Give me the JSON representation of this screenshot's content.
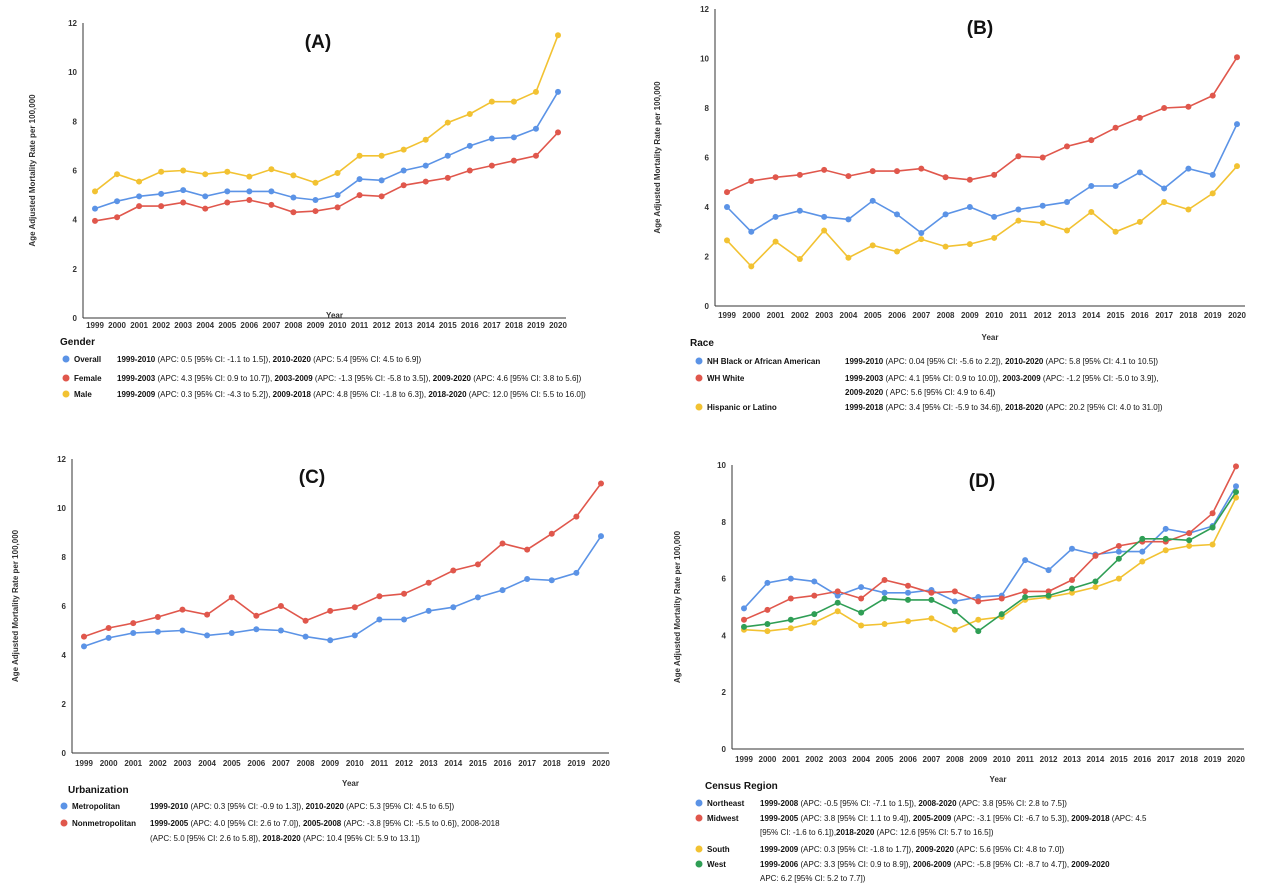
{
  "colors": {
    "blue": "#5b93e6",
    "red": "#e0574c",
    "yellow": "#f2c232",
    "green": "#2f9e55",
    "axis": "#333333"
  },
  "chart_data": [
    {
      "type": "line",
      "title": "(A)",
      "xlabel": "Year",
      "ylabel": "Age Adjusted Mortality Rate per 100,000",
      "ylim": [
        0,
        12
      ],
      "yticks": [
        0,
        2,
        4,
        6,
        8,
        10,
        12
      ],
      "x": [
        "1999",
        "2000",
        "2001",
        "2002",
        "2003",
        "2004",
        "2005",
        "2006",
        "2007",
        "2008",
        "2009",
        "2010",
        "2011",
        "2012",
        "2013",
        "2014",
        "2015",
        "2016",
        "2017",
        "2018",
        "2019",
        "2020"
      ],
      "legend_title": "Gender",
      "series": [
        {
          "name": "Overall",
          "color": "#5b93e6",
          "values": [
            4.45,
            4.75,
            4.95,
            5.05,
            5.2,
            4.95,
            5.15,
            5.15,
            5.15,
            4.9,
            4.8,
            5.0,
            5.65,
            5.6,
            6.0,
            6.2,
            6.6,
            7.0,
            7.3,
            7.35,
            7.7,
            9.2
          ],
          "legend_lines": [
            [
              [
                "b",
                "1999-2010"
              ],
              [
                "n",
                " (APC: 0.5 [95% CI: -1.1 to 1.5]), "
              ],
              [
                "b",
                "2010-2020"
              ],
              [
                "n",
                " (APC: 5.4 [95% CI: 4.5 to 6.9])"
              ]
            ]
          ]
        },
        {
          "name": "Female",
          "color": "#e0574c",
          "values": [
            3.95,
            4.1,
            4.55,
            4.55,
            4.7,
            4.45,
            4.7,
            4.8,
            4.6,
            4.3,
            4.35,
            4.5,
            5.0,
            4.95,
            5.4,
            5.55,
            5.7,
            6.0,
            6.2,
            6.4,
            6.6,
            7.55
          ],
          "legend_lines": [
            [
              [
                "b",
                "1999-2003"
              ],
              [
                "n",
                " (APC: 4.3 [95% CI: 0.9 to 10.7]), "
              ],
              [
                "b",
                "2003-2009"
              ],
              [
                "n",
                " (APC: -1.3 [95% CI: -5.8 to 3.5]), "
              ],
              [
                "b",
                "2009-2020"
              ],
              [
                "n",
                " (APC: 4.6 [95% CI: 3.8 to 5.6])"
              ]
            ]
          ]
        },
        {
          "name": "Male",
          "color": "#f2c232",
          "values": [
            5.15,
            5.85,
            5.55,
            5.95,
            6.0,
            5.85,
            5.95,
            5.75,
            6.05,
            5.8,
            5.5,
            5.9,
            6.6,
            6.6,
            6.85,
            7.25,
            7.95,
            8.3,
            8.8,
            8.8,
            9.2,
            11.5
          ],
          "legend_lines": [
            [
              [
                "b",
                "1999-2009"
              ],
              [
                "n",
                " (APC: 0.3 [95% CI: -4.3 to 5.2]), "
              ],
              [
                "b",
                "2009-2018"
              ],
              [
                "n",
                " (APC: 4.8 [95% CI: -1.8 to 6.3]), "
              ],
              [
                "b",
                "2018-2020"
              ],
              [
                "n",
                " (APC: 12.0 [95% CI: 5.5 to 16.0])"
              ]
            ]
          ]
        }
      ]
    },
    {
      "type": "line",
      "title": "(B)",
      "xlabel": "Year",
      "ylabel": "Age Adjusted Mortality Rate per 100,000",
      "ylim": [
        0,
        12
      ],
      "yticks": [
        0,
        2,
        4,
        6,
        8,
        10,
        12
      ],
      "x": [
        "1999",
        "2000",
        "2001",
        "2002",
        "2003",
        "2004",
        "2005",
        "2006",
        "2007",
        "2008",
        "2009",
        "2010",
        "2011",
        "2012",
        "2013",
        "2014",
        "2015",
        "2016",
        "2017",
        "2018",
        "2019",
        "2020"
      ],
      "legend_title": "Race",
      "series": [
        {
          "name": "NH Black or African American",
          "color": "#5b93e6",
          "values": [
            4.0,
            3.0,
            3.6,
            3.85,
            3.6,
            3.5,
            4.25,
            3.7,
            2.95,
            3.7,
            4.0,
            3.6,
            3.9,
            4.05,
            4.2,
            4.85,
            4.85,
            5.4,
            4.75,
            5.55,
            5.3,
            7.35
          ],
          "legend_lines": [
            [
              [
                "b",
                "1999-2010"
              ],
              [
                "n",
                " (APC: 0.04 [95% CI: -5.6 to 2.2]), "
              ],
              [
                "b",
                "2010-2020"
              ],
              [
                "n",
                " (APC: 5.8 [95% CI: 4.1 to 10.5])"
              ]
            ]
          ]
        },
        {
          "name": "WH White",
          "color": "#e0574c",
          "values": [
            4.6,
            5.05,
            5.2,
            5.3,
            5.5,
            5.25,
            5.45,
            5.45,
            5.55,
            5.2,
            5.1,
            5.3,
            6.05,
            6.0,
            6.45,
            6.7,
            7.2,
            7.6,
            8.0,
            8.05,
            8.5,
            10.05
          ],
          "legend_lines": [
            [
              [
                "b",
                "1999-2003"
              ],
              [
                "n",
                " (APC: 4.1 [95% CI: 0.9 to 10.0]), "
              ],
              [
                "b",
                "2003-2009"
              ],
              [
                "n",
                " (APC: -1.2 [95% CI: -5.0 to 3.9]),"
              ]
            ],
            [
              [
                "b",
                "2009-2020"
              ],
              [
                "n",
                " ( APC: 5.6 [95% CI: 4.9 to 6.4])"
              ]
            ]
          ]
        },
        {
          "name": "Hispanic or Latino",
          "color": "#f2c232",
          "values": [
            2.65,
            1.6,
            2.6,
            1.9,
            3.05,
            1.95,
            2.45,
            2.2,
            2.7,
            2.4,
            2.5,
            2.75,
            3.45,
            3.35,
            3.05,
            3.8,
            3.0,
            3.4,
            4.2,
            3.9,
            4.55,
            5.65
          ],
          "legend_lines": [
            [
              [
                "b",
                "1999-2018"
              ],
              [
                "n",
                " (APC: 3.4 [95% CI: -5.9 to 34.6]), "
              ],
              [
                "b",
                "2018-2020"
              ],
              [
                "n",
                " (APC: 20.2 [95% CI: 4.0 to 31.0])"
              ]
            ]
          ]
        }
      ]
    },
    {
      "type": "line",
      "title": "(C)",
      "xlabel": "Year",
      "ylabel": "Age Adjusted Mortality Rate per 100,000",
      "ylim": [
        0,
        12
      ],
      "yticks": [
        0,
        2,
        4,
        6,
        8,
        10,
        12
      ],
      "x": [
        "1999",
        "2000",
        "2001",
        "2002",
        "2003",
        "2004",
        "2005",
        "2006",
        "2007",
        "2008",
        "2009",
        "2010",
        "2011",
        "2012",
        "2013",
        "2014",
        "2015",
        "2016",
        "2017",
        "2018",
        "2019",
        "2020"
      ],
      "legend_title": "Urbanization",
      "series": [
        {
          "name": "Metropolitan",
          "color": "#5b93e6",
          "values": [
            4.35,
            4.7,
            4.9,
            4.95,
            5.0,
            4.8,
            4.9,
            5.05,
            5.0,
            4.75,
            4.6,
            4.8,
            5.45,
            5.45,
            5.8,
            5.95,
            6.35,
            6.65,
            7.1,
            7.05,
            7.35,
            8.85
          ],
          "legend_lines": [
            [
              [
                "b",
                "1999-2010"
              ],
              [
                "n",
                " (APC: 0.3 [95% CI: -0.9 to 1.3]), "
              ],
              [
                "b",
                "2010-2020"
              ],
              [
                "n",
                " (APC: 5.3 [95% CI: 4.5 to 6.5])"
              ]
            ]
          ]
        },
        {
          "name": "Nonmetropolitan",
          "color": "#e0574c",
          "values": [
            4.75,
            5.1,
            5.3,
            5.55,
            5.85,
            5.65,
            6.35,
            5.6,
            6.0,
            5.4,
            5.8,
            5.95,
            6.4,
            6.5,
            6.95,
            7.45,
            7.7,
            8.55,
            8.3,
            8.95,
            9.65,
            11.0
          ],
          "legend_lines": [
            [
              [
                "b",
                "1999-2005"
              ],
              [
                "n",
                " (APC: 4.0 [95% CI: 2.6 to 7.0]), "
              ],
              [
                "b",
                "2005-2008"
              ],
              [
                "n",
                " (APC: -3.8 [95% CI: -5.5 to 0.6]), 2008-2018"
              ]
            ],
            [
              [
                "n",
                "(APC: 5.0 [95% CI: 2.6 to 5.8]), "
              ],
              [
                "b",
                "2018-2020"
              ],
              [
                "n",
                " (APC: 10.4 [95% CI: 5.9 to 13.1])"
              ]
            ]
          ]
        }
      ]
    },
    {
      "type": "line",
      "title": "(D)",
      "xlabel": "Year",
      "ylabel": "Age Adjusted Mortality Rate per 100,000",
      "ylim": [
        0,
        10
      ],
      "yticks": [
        0,
        2,
        4,
        6,
        8,
        10
      ],
      "x": [
        "1999",
        "2000",
        "2001",
        "2002",
        "2003",
        "2004",
        "2005",
        "2006",
        "2007",
        "2008",
        "2009",
        "2010",
        "2011",
        "2012",
        "2013",
        "2014",
        "2015",
        "2016",
        "2017",
        "2018",
        "2019",
        "2020"
      ],
      "legend_title": "Census Region",
      "series": [
        {
          "name": "Northeast",
          "color": "#5b93e6",
          "values": [
            4.95,
            5.85,
            6.0,
            5.9,
            5.4,
            5.7,
            5.5,
            5.5,
            5.6,
            5.2,
            5.35,
            5.4,
            6.65,
            6.3,
            7.05,
            6.85,
            6.95,
            6.95,
            7.75,
            7.6,
            7.85,
            9.25
          ],
          "legend_lines": [
            [
              [
                "b",
                "1999-2008"
              ],
              [
                "n",
                " (APC: -0.5 [95% CI: -7.1 to 1.5]), "
              ],
              [
                "b",
                "2008-2020"
              ],
              [
                "n",
                " (APC: 3.8 [95% CI: 2.8 to 7.5])"
              ]
            ]
          ]
        },
        {
          "name": "Midwest",
          "color": "#e0574c",
          "values": [
            4.55,
            4.9,
            5.3,
            5.4,
            5.55,
            5.3,
            5.95,
            5.75,
            5.5,
            5.55,
            5.2,
            5.3,
            5.55,
            5.55,
            5.95,
            6.8,
            7.15,
            7.3,
            7.3,
            7.6,
            8.3,
            9.95
          ],
          "legend_lines": [
            [
              [
                "b",
                "1999-2005"
              ],
              [
                "n",
                " (APC: 3.8 [95% CI: 1.1 to 9.4]), "
              ],
              [
                "b",
                "2005-2009"
              ],
              [
                "n",
                " (APC: -3.1 [95% CI: -6.7 to 5.3]), "
              ],
              [
                "b",
                "2009-2018"
              ],
              [
                "n",
                " (APC: 4.5"
              ]
            ],
            [
              [
                "n",
                "[95% CI: -1.6 to 6.1]),"
              ],
              [
                "b",
                "2018-2020"
              ],
              [
                "n",
                " (APC: 12.6 [95% CI: 5.7 to 16.5])"
              ]
            ]
          ]
        },
        {
          "name": "South",
          "color": "#f2c232",
          "values": [
            4.2,
            4.15,
            4.25,
            4.45,
            4.85,
            4.35,
            4.4,
            4.5,
            4.6,
            4.2,
            4.55,
            4.65,
            5.25,
            5.35,
            5.5,
            5.7,
            6.0,
            6.6,
            7.0,
            7.15,
            7.2,
            8.85
          ],
          "legend_lines": [
            [
              [
                "b",
                "1999-2009"
              ],
              [
                "n",
                " (APC: 0.3 [95% CI: -1.8 to 1.7]), "
              ],
              [
                "b",
                "2009-2020"
              ],
              [
                "n",
                " (APC: 5.6 [95% CI: 4.8 to 7.0])"
              ]
            ]
          ]
        },
        {
          "name": "West",
          "color": "#2f9e55",
          "values": [
            4.3,
            4.4,
            4.55,
            4.75,
            5.15,
            4.8,
            5.3,
            5.25,
            5.25,
            4.85,
            4.15,
            4.75,
            5.35,
            5.4,
            5.65,
            5.9,
            6.7,
            7.4,
            7.4,
            7.35,
            7.8,
            9.05
          ],
          "legend_lines": [
            [
              [
                "b",
                "1999-2006"
              ],
              [
                "n",
                " (APC: 3.3 [95% CI: 0.9 to 8.9]), "
              ],
              [
                "b",
                "2006-2009"
              ],
              [
                "n",
                " (APC: -5.8 [95% CI: -8.7 to 4.7]), "
              ],
              [
                "b",
                "2009-2020"
              ]
            ],
            [
              [
                "n",
                "APC: 6.2 [95% CI: 5.2 to 7.7])"
              ]
            ]
          ]
        }
      ]
    }
  ]
}
